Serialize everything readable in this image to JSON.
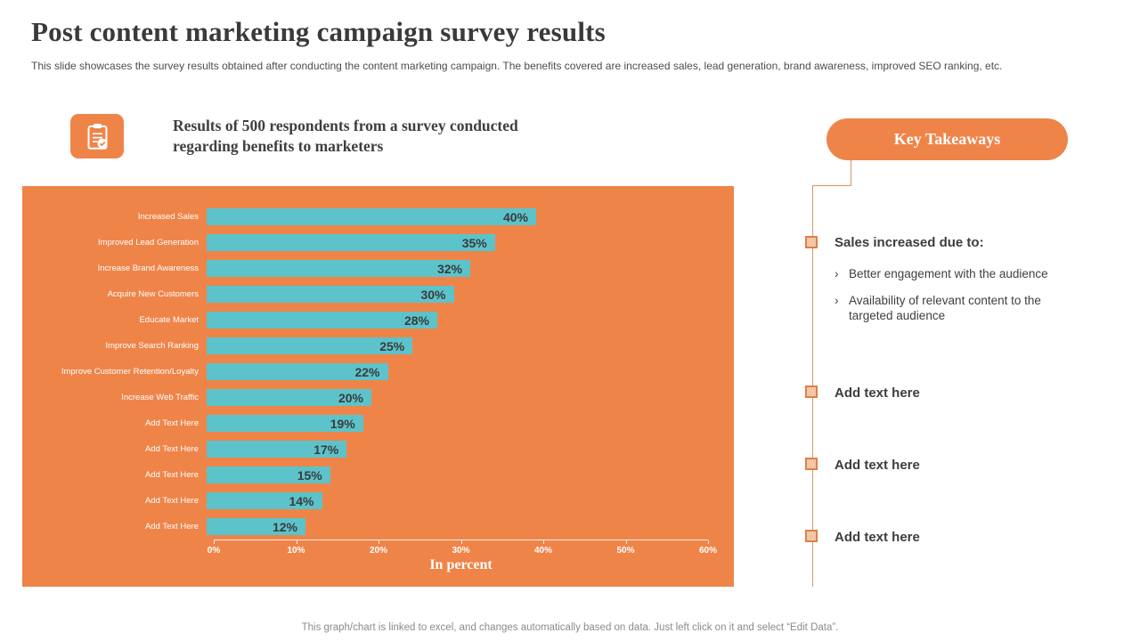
{
  "page": {
    "title": "Post content marketing campaign survey results",
    "subtitle": "This slide showcases the survey results obtained after conducting the content marketing campaign. The benefits covered are increased sales, lead generation, brand awareness, improved SEO ranking, etc.",
    "footer": "This graph/chart is linked to excel,  and changes automatically based on data. Just left click on it and select “Edit Data”."
  },
  "intro": {
    "icon": "clipboard-check-icon",
    "text": "Results of 500 respondents from a survey conducted regarding benefits to marketers"
  },
  "key_takeaways": {
    "button_label": "Key Takeaways",
    "bullet_glyph": "›",
    "items": [
      {
        "heading": "Sales increased due to:",
        "bullets": [
          "Better engagement with the audience",
          "Availability of relevant content to the targeted audience"
        ]
      },
      {
        "heading": "Add text here",
        "bullets": []
      },
      {
        "heading": "Add text here",
        "bullets": []
      },
      {
        "heading": "Add text here",
        "bullets": []
      }
    ]
  },
  "chart_data": {
    "type": "bar",
    "orientation": "horizontal",
    "title": "",
    "categories": [
      "Increased Sales",
      "Improved Lead Generation",
      "Increase Brand Awareness",
      "Acquire New Customers",
      "Educate Market",
      "Improve Search Ranking",
      "Improve Customer Retention/Loyalty",
      "Increase Web Traffic",
      "Add Text Here",
      "Add Text Here",
      "Add Text Here",
      "Add Text Here",
      "Add Text Here"
    ],
    "values": [
      40,
      35,
      32,
      30,
      28,
      25,
      22,
      20,
      19,
      17,
      15,
      14,
      12
    ],
    "value_labels": [
      "40%",
      "35%",
      "32%",
      "30%",
      "28%",
      "25%",
      "22%",
      "20%",
      "19%",
      "17%",
      "15%",
      "14%",
      "12%"
    ],
    "xlabel": "In percent",
    "ylabel": "",
    "x_ticks": [
      "0%",
      "10%",
      "20%",
      "30%",
      "40%",
      "50%",
      "60%"
    ],
    "xlim": [
      0,
      60
    ],
    "grid": false,
    "legend": false,
    "bar_color": "#5cc3cb",
    "panel_background": "#ef8449"
  },
  "colors": {
    "accent_orange": "#ef8449",
    "bar_teal": "#5cc3cb",
    "marker_fill": "#f2c7a4",
    "marker_border": "#dd8049",
    "text_dark": "#3a3a3a"
  }
}
